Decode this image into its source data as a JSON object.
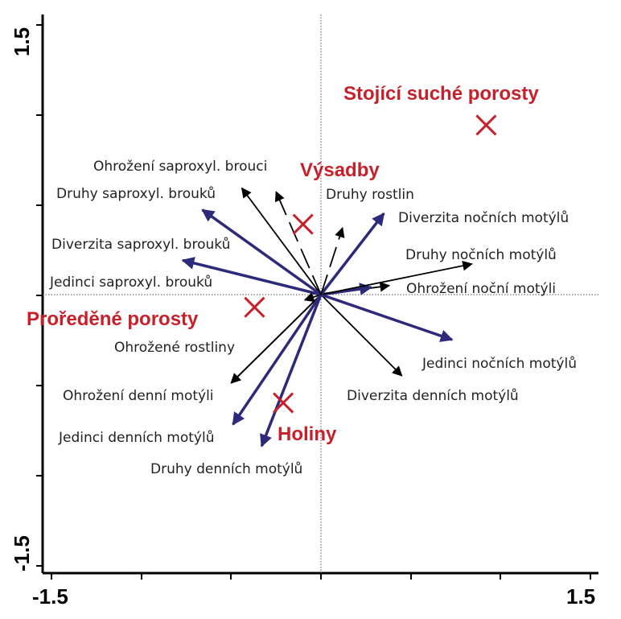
{
  "chart_data": {
    "type": "scatter",
    "subtype": "ordination-biplot",
    "xlim": [
      -1.5,
      1.5
    ],
    "ylim": [
      -1.5,
      1.5
    ],
    "grid": false,
    "x_ticks": [
      "-1.5",
      "1.5"
    ],
    "y_ticks": [
      "-1.5",
      "1.5"
    ],
    "colors": {
      "primary_arrow": "#2e2a7a",
      "secondary_arrow": "#000000",
      "class_marker": "#c8202b"
    },
    "vectors": [
      {
        "label": "Ohrožení saproxyl. brouci",
        "x": -0.44,
        "y": 0.59,
        "style": "thin"
      },
      {
        "label": "Druhy saproxyl. brouků",
        "x": -0.66,
        "y": 0.47,
        "style": "bold"
      },
      {
        "label": "Diverzita saproxyl. brouků",
        "x": -0.77,
        "y": 0.19,
        "style": "bold"
      },
      {
        "label": "Jedinci saproxyl. brouků",
        "x": -0.09,
        "y": -0.03,
        "style": "thin"
      },
      {
        "label": "Ohrožené rostliny",
        "x": -0.5,
        "y": -0.49,
        "style": "thin"
      },
      {
        "label": "Ohrožení denní motýli",
        "x": -0.5,
        "y": -0.49,
        "style": "thin"
      },
      {
        "label": "Jedinci denních motýlů",
        "x": -0.49,
        "y": -0.72,
        "style": "bold"
      },
      {
        "label": "Druhy denních motýlů",
        "x": -0.33,
        "y": -0.84,
        "style": "bold"
      },
      {
        "label": "Diverzita denních motýlů",
        "x": 0.45,
        "y": -0.45,
        "style": "thin"
      },
      {
        "label": "Jedinci nočních motýlů",
        "x": 0.73,
        "y": -0.25,
        "style": "bold"
      },
      {
        "label": "Ohrožení noční motýli",
        "x": 0.38,
        "y": 0.05,
        "style": "thin"
      },
      {
        "label": "Ohrožení noční motýli",
        "x": 0.28,
        "y": 0.04,
        "style": "bold"
      },
      {
        "label": "Druhy nočních motýlů",
        "x": 0.84,
        "y": 0.17,
        "style": "thin"
      },
      {
        "label": "Diverzita nočních motýlů",
        "x": 0.35,
        "y": 0.45,
        "style": "bold"
      },
      {
        "label": "Druhy rostlin",
        "x": 0.12,
        "y": 0.37,
        "style": "dashed"
      },
      {
        "label": "Výsadby",
        "x": -0.25,
        "y": 0.57,
        "style": "dashed"
      }
    ],
    "classes": [
      {
        "label": "Stojící suché porosty",
        "x": 0.92,
        "y": 0.94
      },
      {
        "label": "Výsadby",
        "x": -0.1,
        "y": 0.39
      },
      {
        "label": "Proředěné porosty",
        "x": -0.37,
        "y": -0.07
      },
      {
        "label": "Holiny",
        "x": -0.21,
        "y": -0.6
      }
    ],
    "labels": {
      "ohrozeni_saproxyl_brouci": "Ohrožení saproxyl. brouci",
      "druhy_saproxyl_brouku": "Druhy saproxyl. brouků",
      "diverzita_saproxyl_brouku": "Diverzita saproxyl. brouků",
      "jedinci_saproxyl_brouku": "Jedinci saproxyl. brouků",
      "ohrozene_rostliny": "Ohrožené rostliny",
      "ohrozeni_denni_motyli": "Ohrožení denní motýli",
      "jedinci_dennich_motylu": "Jedinci denních motýlů",
      "druhy_dennich_motylu": "Druhy denních motýlů",
      "diverzita_dennich_motylu": "Diverzita denních motýlů",
      "jedinci_nocnich_motylu": "Jedinci nočních motýlů",
      "ohrozeni_nocni_motyli": "Ohrožení noční motýli",
      "druhy_nocnich_motylu": "Druhy nočních motýlů",
      "diverzita_nocnich_motylu": "Diverzita nočních motýlů",
      "druhy_rostlin": "Druhy rostlin",
      "stojici_suche_porosty": "Stojící suché porosty",
      "vysadby": "Výsadby",
      "proredene_porosty": "Proředěné porosty",
      "holiny": "Holiny"
    }
  }
}
